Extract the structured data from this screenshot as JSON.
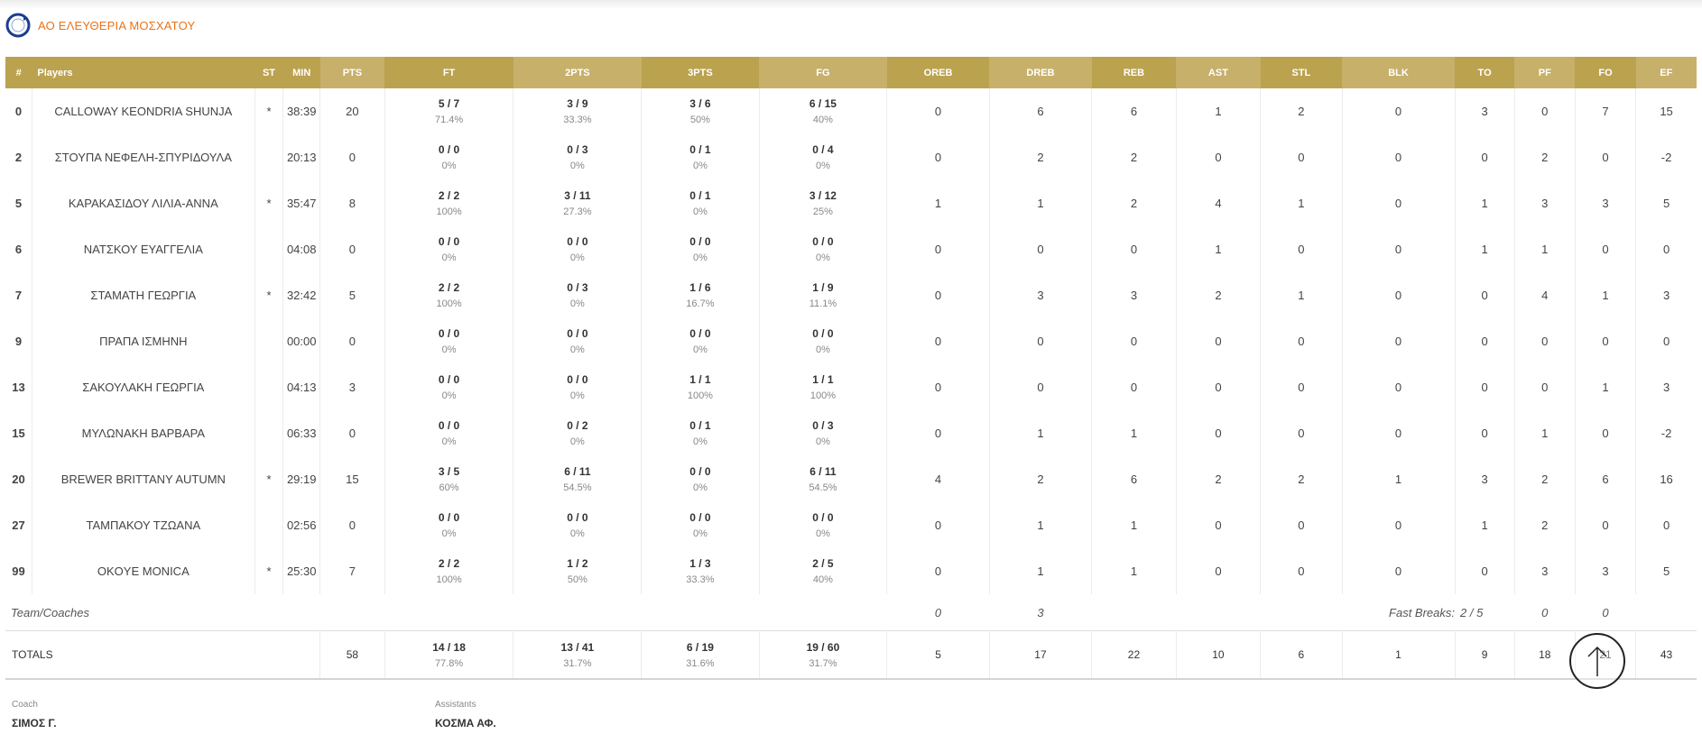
{
  "team": {
    "name": "ΑΟ ΕΛΕΥΘΕΡΙΑ ΜΟΣΧΑΤΟΥ"
  },
  "table": {
    "headers": {
      "num": "#",
      "players": "Players",
      "st": "ST",
      "min": "MIN",
      "pts": "PTS",
      "ft": "FT",
      "twopts": "2PTS",
      "threepts": "3PTS",
      "fg": "FG",
      "oreb": "OREB",
      "dreb": "DREB",
      "reb": "REB",
      "ast": "AST",
      "stl": "STL",
      "blk": "BLK",
      "to": "TO",
      "pf": "PF",
      "fo": "FO",
      "ef": "EF"
    },
    "players": [
      {
        "num": "0",
        "name": "CALLOWAY KEONDRIA SHUNJA",
        "st": "*",
        "min": "38:39",
        "pts": "20",
        "ft_m": "5 / 7",
        "ft_p": "71.4%",
        "two_m": "3 / 9",
        "two_p": "33.3%",
        "three_m": "3 / 6",
        "three_p": "50%",
        "fg_m": "6 / 15",
        "fg_p": "40%",
        "oreb": "0",
        "dreb": "6",
        "reb": "6",
        "ast": "1",
        "stl": "2",
        "blk": "0",
        "to": "3",
        "pf": "0",
        "fo": "7",
        "ef": "15"
      },
      {
        "num": "2",
        "name": "ΣΤΟΥΠΑ ΝΕΦΕΛΗ-ΣΠΥΡΙΔΟΥΛΑ",
        "st": "",
        "min": "20:13",
        "pts": "0",
        "ft_m": "0 / 0",
        "ft_p": "0%",
        "two_m": "0 / 3",
        "two_p": "0%",
        "three_m": "0 / 1",
        "three_p": "0%",
        "fg_m": "0 / 4",
        "fg_p": "0%",
        "oreb": "0",
        "dreb": "2",
        "reb": "2",
        "ast": "0",
        "stl": "0",
        "blk": "0",
        "to": "0",
        "pf": "2",
        "fo": "0",
        "ef": "-2"
      },
      {
        "num": "5",
        "name": "ΚΑΡΑΚΑΣΙΔΟΥ ΛΙΛΙΑ-ΑΝΝΑ",
        "st": "*",
        "min": "35:47",
        "pts": "8",
        "ft_m": "2 / 2",
        "ft_p": "100%",
        "two_m": "3 / 11",
        "two_p": "27.3%",
        "three_m": "0 / 1",
        "three_p": "0%",
        "fg_m": "3 / 12",
        "fg_p": "25%",
        "oreb": "1",
        "dreb": "1",
        "reb": "2",
        "ast": "4",
        "stl": "1",
        "blk": "0",
        "to": "1",
        "pf": "3",
        "fo": "3",
        "ef": "5"
      },
      {
        "num": "6",
        "name": "ΝΑΤΣΚΟΥ ΕΥΑΓΓΕΛΙΑ",
        "st": "",
        "min": "04:08",
        "pts": "0",
        "ft_m": "0 / 0",
        "ft_p": "0%",
        "two_m": "0 / 0",
        "two_p": "0%",
        "three_m": "0 / 0",
        "three_p": "0%",
        "fg_m": "0 / 0",
        "fg_p": "0%",
        "oreb": "0",
        "dreb": "0",
        "reb": "0",
        "ast": "1",
        "stl": "0",
        "blk": "0",
        "to": "1",
        "pf": "1",
        "fo": "0",
        "ef": "0"
      },
      {
        "num": "7",
        "name": "ΣΤΑΜΑΤΗ ΓΕΩΡΓΙΑ",
        "st": "*",
        "min": "32:42",
        "pts": "5",
        "ft_m": "2 / 2",
        "ft_p": "100%",
        "two_m": "0 / 3",
        "two_p": "0%",
        "three_m": "1 / 6",
        "three_p": "16.7%",
        "fg_m": "1 / 9",
        "fg_p": "11.1%",
        "oreb": "0",
        "dreb": "3",
        "reb": "3",
        "ast": "2",
        "stl": "1",
        "blk": "0",
        "to": "0",
        "pf": "4",
        "fo": "1",
        "ef": "3"
      },
      {
        "num": "9",
        "name": "ΠΡΑΠΑ ΙΣΜΗΝΗ",
        "st": "",
        "min": "00:00",
        "pts": "0",
        "ft_m": "0 / 0",
        "ft_p": "0%",
        "two_m": "0 / 0",
        "two_p": "0%",
        "three_m": "0 / 0",
        "three_p": "0%",
        "fg_m": "0 / 0",
        "fg_p": "0%",
        "oreb": "0",
        "dreb": "0",
        "reb": "0",
        "ast": "0",
        "stl": "0",
        "blk": "0",
        "to": "0",
        "pf": "0",
        "fo": "0",
        "ef": "0"
      },
      {
        "num": "13",
        "name": "ΣΑΚΟΥΛΑΚΗ ΓΕΩΡΓΙΑ",
        "st": "",
        "min": "04:13",
        "pts": "3",
        "ft_m": "0 / 0",
        "ft_p": "0%",
        "two_m": "0 / 0",
        "two_p": "0%",
        "three_m": "1 / 1",
        "three_p": "100%",
        "fg_m": "1 / 1",
        "fg_p": "100%",
        "oreb": "0",
        "dreb": "0",
        "reb": "0",
        "ast": "0",
        "stl": "0",
        "blk": "0",
        "to": "0",
        "pf": "0",
        "fo": "1",
        "ef": "3"
      },
      {
        "num": "15",
        "name": "ΜΥΛΩΝΑΚΗ ΒΑΡΒΑΡΑ",
        "st": "",
        "min": "06:33",
        "pts": "0",
        "ft_m": "0 / 0",
        "ft_p": "0%",
        "two_m": "0 / 2",
        "two_p": "0%",
        "three_m": "0 / 1",
        "three_p": "0%",
        "fg_m": "0 / 3",
        "fg_p": "0%",
        "oreb": "0",
        "dreb": "1",
        "reb": "1",
        "ast": "0",
        "stl": "0",
        "blk": "0",
        "to": "0",
        "pf": "1",
        "fo": "0",
        "ef": "-2"
      },
      {
        "num": "20",
        "name": "BREWER BRITTANY AUTUMN",
        "st": "*",
        "min": "29:19",
        "pts": "15",
        "ft_m": "3 / 5",
        "ft_p": "60%",
        "two_m": "6 / 11",
        "two_p": "54.5%",
        "three_m": "0 / 0",
        "three_p": "0%",
        "fg_m": "6 / 11",
        "fg_p": "54.5%",
        "oreb": "4",
        "dreb": "2",
        "reb": "6",
        "ast": "2",
        "stl": "2",
        "blk": "1",
        "to": "3",
        "pf": "2",
        "fo": "6",
        "ef": "16"
      },
      {
        "num": "27",
        "name": "ΤΑΜΠΑΚΟΥ ΤΖΩΑΝΑ",
        "st": "",
        "min": "02:56",
        "pts": "0",
        "ft_m": "0 / 0",
        "ft_p": "0%",
        "two_m": "0 / 0",
        "two_p": "0%",
        "three_m": "0 / 0",
        "three_p": "0%",
        "fg_m": "0 / 0",
        "fg_p": "0%",
        "oreb": "0",
        "dreb": "1",
        "reb": "1",
        "ast": "0",
        "stl": "0",
        "blk": "0",
        "to": "1",
        "pf": "2",
        "fo": "0",
        "ef": "0"
      },
      {
        "num": "99",
        "name": "OKOYE MONICA",
        "st": "*",
        "min": "25:30",
        "pts": "7",
        "ft_m": "2 / 2",
        "ft_p": "100%",
        "two_m": "1 / 2",
        "two_p": "50%",
        "three_m": "1 / 3",
        "three_p": "33.3%",
        "fg_m": "2 / 5",
        "fg_p": "40%",
        "oreb": "0",
        "dreb": "1",
        "reb": "1",
        "ast": "0",
        "stl": "0",
        "blk": "0",
        "to": "0",
        "pf": "3",
        "fo": "3",
        "ef": "5"
      }
    ],
    "team_row": {
      "label": "Team/Coaches",
      "oreb": "0",
      "dreb": "3",
      "fast_breaks_label": "Fast Breaks:",
      "fast_breaks_value": "2 / 5",
      "to": "0",
      "pf": "0"
    },
    "totals": {
      "label": "TOTALS",
      "pts": "58",
      "ft_m": "14 / 18",
      "ft_p": "77.8%",
      "two_m": "13 / 41",
      "two_p": "31.7%",
      "three_m": "6 / 19",
      "three_p": "31.6%",
      "fg_m": "19 / 60",
      "fg_p": "31.7%",
      "oreb": "5",
      "dreb": "17",
      "reb": "22",
      "ast": "10",
      "stl": "6",
      "blk": "1",
      "to": "9",
      "pf": "18",
      "fo": "21",
      "ef": "43"
    }
  },
  "coach": {
    "label": "Coach",
    "name": "ΣΙΜΟΣ Γ."
  },
  "assistants": {
    "label": "Assistants",
    "name": "ΚΟΣΜΑ ΑΦ."
  },
  "scroll_top": {
    "icon": "arrow-up-icon"
  },
  "colors": {
    "header_dark": "#bba24f",
    "header_light": "#c7b06a",
    "team_name": "#e8731a",
    "logo": "#1d3c8f"
  }
}
